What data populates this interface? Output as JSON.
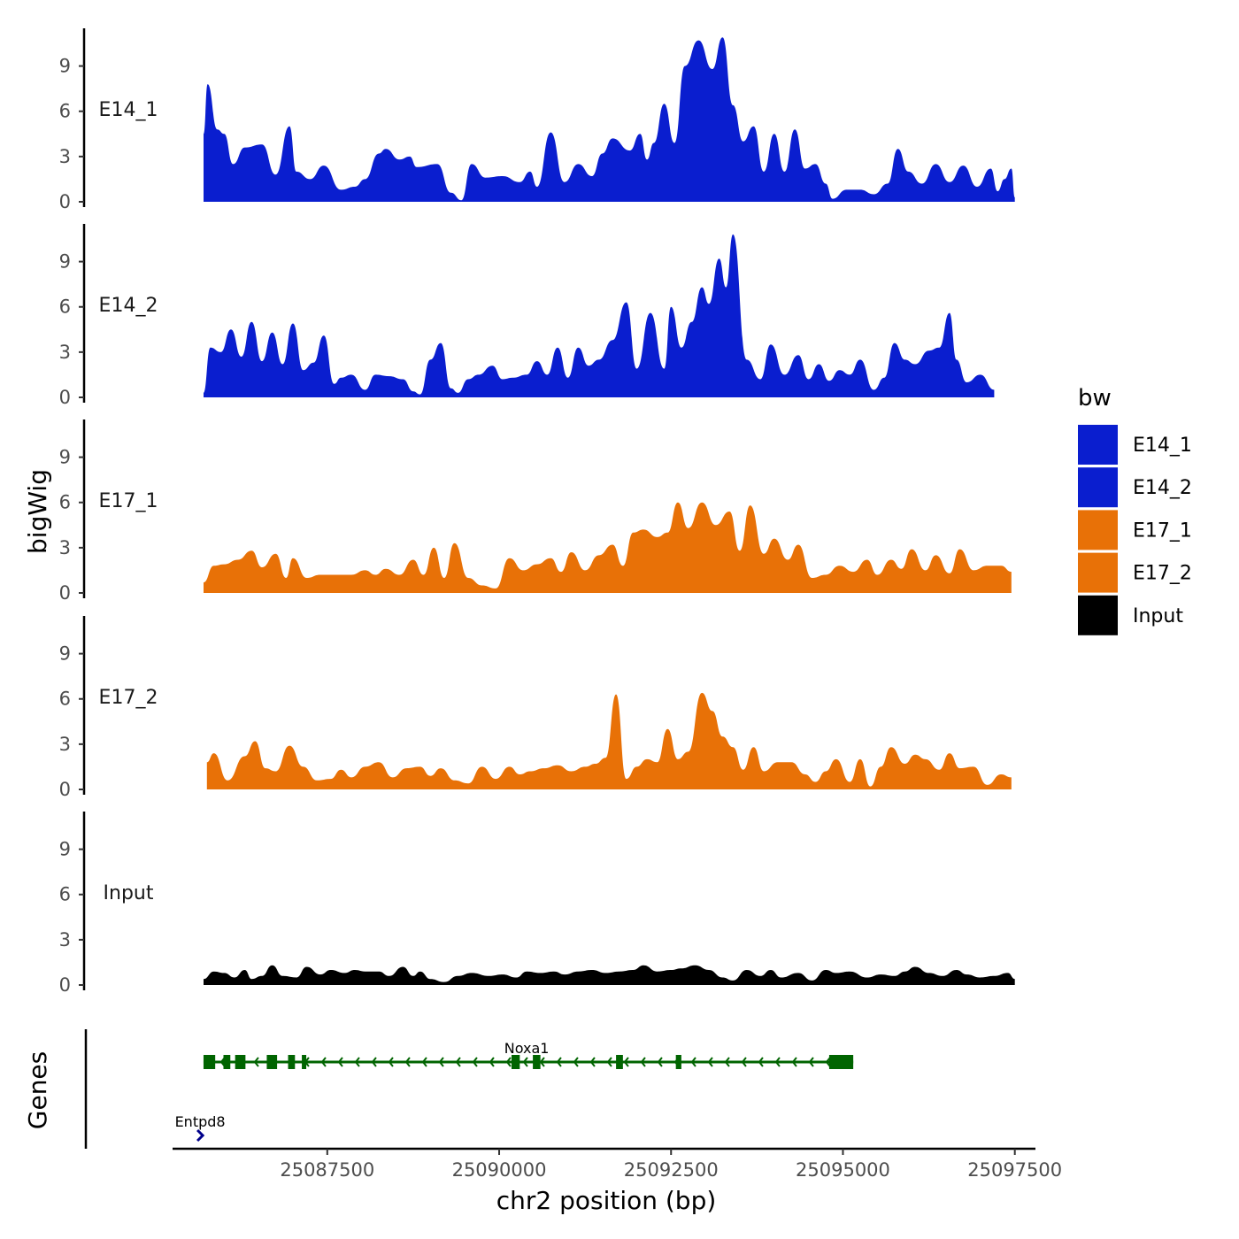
{
  "chart_data": {
    "type": "area",
    "x_label": "chr2 position (bp)",
    "y_label": "bigWig",
    "genes_panel_label": "Genes",
    "legend_title": "bw",
    "x_range": [
      25085250,
      25097800
    ],
    "x_ticks": [
      {
        "value": 25087500,
        "label": "25087500"
      },
      {
        "value": 25090000,
        "label": "25090000"
      },
      {
        "value": 25092500,
        "label": "25092500"
      },
      {
        "value": 25095000,
        "label": "25095000"
      },
      {
        "value": 25097500,
        "label": "25097500"
      }
    ],
    "y_range": [
      0,
      11.5
    ],
    "y_ticks": [
      {
        "value": 0,
        "label": "0"
      },
      {
        "value": 3,
        "label": "3"
      },
      {
        "value": 6,
        "label": "6"
      },
      {
        "value": 9,
        "label": "9"
      }
    ],
    "tracks": [
      {
        "name": "E14_1",
        "label": "E14_1",
        "color": "#0a1ecf",
        "x": [
          25085700,
          25085760,
          25085900,
          25086000,
          25086130,
          25086300,
          25086550,
          25086750,
          25086950,
          25087050,
          25087250,
          25087450,
          25087700,
          25087900,
          25088050,
          25088250,
          25088350,
          25088550,
          25088700,
          25088800,
          25089100,
          25089300,
          25089450,
          25089600,
          25089800,
          25090050,
          25090300,
          25090450,
          25090550,
          25090750,
          25090950,
          25091150,
          25091350,
          25091500,
          25091650,
          25091900,
          25092050,
          25092150,
          25092250,
          25092400,
          25092550,
          25092700,
          25092900,
          25093100,
          25093250,
          25093400,
          25093550,
          25093700,
          25093850,
          25094000,
          25094150,
          25094300,
          25094450,
          25094600,
          25094750,
          25094850,
          25095050,
          25095250,
          25095450,
          25095650,
          25095800,
          25095950,
          25096150,
          25096350,
          25096550,
          25096750,
          25096950,
          25097150,
          25097250,
          25097350,
          25097450,
          25097500
        ],
        "values": [
          4.5,
          7.8,
          4.8,
          4.5,
          2.5,
          3.6,
          3.8,
          1.8,
          5.0,
          2.0,
          1.5,
          2.4,
          0.8,
          1.0,
          1.5,
          3.2,
          3.5,
          2.8,
          3.0,
          2.3,
          2.5,
          0.6,
          0.1,
          2.5,
          1.6,
          1.7,
          1.3,
          2.0,
          1.0,
          4.6,
          1.3,
          2.5,
          1.7,
          3.2,
          4.2,
          3.4,
          4.5,
          2.8,
          3.9,
          6.5,
          3.9,
          9.0,
          10.7,
          8.8,
          10.9,
          6.4,
          4.0,
          5.0,
          2.0,
          4.5,
          2.0,
          4.8,
          2.2,
          2.5,
          1.2,
          0.2,
          0.8,
          0.8,
          0.5,
          1.2,
          3.5,
          2.0,
          1.2,
          2.5,
          1.3,
          2.4,
          1.0,
          2.2,
          0.7,
          1.5,
          2.2,
          0.3
        ]
      },
      {
        "name": "E14_2",
        "label": "E14_2",
        "color": "#0a1ecf",
        "x": [
          25085700,
          25085800,
          25085950,
          25086100,
          25086250,
          25086400,
          25086550,
          25086700,
          25086850,
          25087000,
          25087150,
          25087300,
          25087450,
          25087600,
          25087700,
          25087850,
          25088050,
          25088200,
          25088400,
          25088600,
          25088750,
          25088850,
          25089000,
          25089150,
          25089300,
          25089400,
          25089550,
          25089700,
          25089900,
          25090050,
          25090200,
          25090400,
          25090550,
          25090700,
          25090850,
          25091000,
          25091150,
          25091300,
          25091450,
          25091650,
          25091850,
          25092000,
          25092200,
          25092400,
          25092500,
          25092650,
          25092800,
          25092950,
          25093050,
          25093200,
          25093300,
          25093400,
          25093600,
          25093800,
          25093950,
          25094150,
          25094350,
          25094500,
          25094650,
          25094800,
          25094950,
          25095100,
          25095250,
          25095450,
          25095600,
          25095750,
          25095900,
          25096050,
          25096250,
          25096400,
          25096550,
          25096650,
          25096800,
          25097000,
          25097200
        ],
        "values": [
          0.3,
          3.3,
          3.0,
          4.5,
          2.7,
          5.0,
          2.4,
          4.3,
          2.2,
          4.9,
          1.8,
          2.3,
          4.1,
          0.9,
          1.3,
          1.5,
          0.5,
          1.5,
          1.4,
          1.2,
          0.4,
          0.2,
          2.5,
          3.6,
          0.6,
          0.3,
          1.2,
          1.5,
          2.1,
          1.2,
          1.3,
          1.5,
          2.4,
          1.5,
          3.3,
          1.3,
          3.3,
          2.1,
          2.5,
          3.8,
          6.3,
          1.9,
          5.6,
          1.9,
          6.0,
          3.3,
          5.0,
          7.3,
          6.2,
          9.2,
          7.3,
          10.8,
          2.5,
          1.2,
          3.5,
          1.5,
          2.8,
          1.2,
          2.2,
          1.1,
          1.8,
          1.5,
          2.5,
          0.5,
          1.3,
          3.6,
          2.5,
          2.2,
          3.1,
          3.3,
          5.6,
          2.5,
          1.0,
          1.5,
          0.5
        ]
      },
      {
        "name": "E17_1",
        "label": "E17_1",
        "color": "#e87107",
        "x": [
          25085700,
          25085850,
          25086000,
          25086200,
          25086400,
          25086550,
          25086750,
          25086900,
          25087000,
          25087200,
          25087400,
          25087650,
          25087850,
          25088050,
          25088200,
          25088350,
          25088550,
          25088750,
          25088900,
          25089050,
          25089200,
          25089350,
          25089550,
          25089750,
          25089950,
          25090150,
          25090350,
          25090550,
          25090750,
          25090900,
          25091050,
          25091250,
          25091450,
          25091650,
          25091800,
          25091950,
          25092100,
          25092300,
          25092450,
          25092600,
          25092750,
          25092950,
          25093150,
          25093350,
          25093500,
          25093650,
          25093850,
          25094000,
          25094200,
          25094350,
          25094550,
          25094750,
          25094950,
          25095150,
          25095350,
          25095500,
          25095700,
          25095850,
          25096000,
          25096200,
          25096350,
          25096550,
          25096700,
          25096900,
          25097100,
          25097300,
          25097450
        ],
        "values": [
          0.7,
          1.8,
          1.9,
          2.2,
          2.8,
          1.7,
          2.6,
          1.0,
          2.3,
          1.0,
          1.2,
          1.2,
          1.2,
          1.5,
          1.2,
          1.6,
          1.2,
          2.2,
          1.2,
          3.0,
          1.0,
          3.3,
          1.0,
          0.5,
          0.3,
          2.3,
          1.5,
          1.9,
          2.3,
          1.4,
          2.7,
          1.5,
          2.5,
          3.2,
          1.8,
          4.0,
          4.2,
          3.7,
          4.0,
          6.0,
          4.3,
          6.0,
          4.5,
          5.4,
          2.8,
          5.8,
          2.6,
          3.6,
          2.2,
          3.2,
          1.0,
          1.2,
          1.8,
          1.4,
          2.2,
          1.2,
          2.2,
          1.6,
          2.9,
          1.5,
          2.5,
          1.3,
          2.9,
          1.5,
          1.8,
          1.8,
          1.4
        ]
      },
      {
        "name": "E17_2",
        "label": "E17_2",
        "color": "#e87107",
        "x": [
          25085750,
          25085850,
          25086050,
          25086300,
          25086450,
          25086600,
          25086750,
          25086950,
          25087150,
          25087350,
          25087550,
          25087700,
          25087850,
          25088050,
          25088250,
          25088450,
          25088650,
          25088850,
          25089000,
          25089150,
          25089350,
          25089550,
          25089750,
          25089950,
          25090150,
          25090300,
          25090450,
          25090650,
          25090850,
          25091050,
          25091250,
          25091400,
          25091550,
          25091700,
          25091850,
          25092000,
          25092150,
          25092300,
          25092450,
          25092600,
          25092750,
          25092950,
          25093100,
          25093250,
          25093400,
          25093550,
          25093700,
          25093850,
          25094050,
          25094250,
          25094450,
          25094600,
          25094750,
          25094900,
          25095100,
          25095250,
          25095400,
          25095550,
          25095700,
          25095900,
          25096050,
          25096200,
          25096400,
          25096550,
          25096700,
          25096900,
          25097100,
          25097300,
          25097450
        ],
        "values": [
          1.8,
          2.4,
          0.6,
          2.2,
          3.2,
          1.4,
          1.2,
          2.9,
          1.5,
          0.6,
          0.7,
          1.3,
          0.8,
          1.5,
          1.8,
          0.8,
          1.4,
          1.5,
          0.9,
          1.4,
          0.6,
          0.4,
          1.5,
          0.7,
          1.5,
          1.0,
          1.2,
          1.4,
          1.6,
          1.2,
          1.5,
          1.7,
          2.1,
          6.3,
          0.7,
          1.5,
          2.0,
          1.8,
          4.0,
          2.0,
          2.5,
          6.4,
          5.2,
          3.5,
          2.8,
          1.3,
          2.8,
          1.2,
          1.8,
          1.8,
          1.0,
          0.5,
          1.2,
          2.0,
          0.5,
          2.0,
          0.2,
          1.5,
          2.8,
          1.7,
          2.3,
          2.0,
          1.3,
          2.4,
          1.4,
          1.5,
          0.3,
          1.0,
          0.8
        ]
      },
      {
        "name": "Input",
        "label": "Input",
        "color": "#000000",
        "x": [
          25085700,
          25085850,
          25086000,
          25086150,
          25086300,
          25086400,
          25086550,
          25086700,
          25086850,
          25087050,
          25087200,
          25087400,
          25087550,
          25087750,
          25087900,
          25088050,
          25088250,
          25088400,
          25088600,
          25088750,
          25088850,
          25089000,
          25089200,
          25089400,
          25089600,
          25089850,
          25090050,
          25090250,
          25090400,
          25090600,
          25090800,
          25090950,
          25091150,
          25091350,
          25091550,
          25091750,
          25091950,
          25092100,
          25092300,
          25092500,
          25092650,
          25092850,
          25093050,
          25093250,
          25093400,
          25093600,
          25093800,
          25093950,
          25094100,
          25094350,
          25094550,
          25094750,
          25094900,
          25095100,
          25095350,
          25095550,
          25095750,
          25095900,
          25096050,
          25096250,
          25096450,
          25096650,
          25096800,
          25097000,
          25097200,
          25097400,
          25097500
        ],
        "values": [
          0.4,
          0.9,
          0.8,
          0.5,
          1.0,
          0.4,
          0.6,
          1.3,
          0.6,
          0.5,
          1.2,
          0.7,
          1.0,
          0.8,
          1.0,
          0.9,
          0.9,
          0.6,
          1.2,
          0.6,
          0.9,
          0.4,
          0.2,
          0.6,
          0.8,
          0.6,
          0.7,
          0.5,
          0.9,
          0.8,
          0.9,
          0.7,
          0.9,
          1.0,
          0.8,
          0.9,
          1.0,
          1.3,
          0.9,
          1.0,
          1.1,
          1.3,
          1.0,
          0.5,
          0.3,
          1.0,
          0.6,
          1.0,
          0.5,
          0.8,
          0.3,
          1.0,
          0.8,
          0.9,
          0.5,
          0.7,
          0.6,
          0.9,
          1.2,
          0.8,
          0.6,
          1.0,
          0.7,
          0.5,
          0.6,
          0.8,
          0.4
        ]
      }
    ],
    "legend": [
      {
        "label": "E14_1",
        "color": "#0a1ecf"
      },
      {
        "label": "E14_2",
        "color": "#0a1ecf"
      },
      {
        "label": "E17_1",
        "color": "#e87107"
      },
      {
        "label": "E17_2",
        "color": "#e87107"
      },
      {
        "label": "Input",
        "color": "#000000"
      }
    ],
    "genes": [
      {
        "name": "Noxa1",
        "strand": "-",
        "color": "#006400",
        "start": 25085700,
        "end": 25095150,
        "exons": [
          [
            25085700,
            25085870
          ],
          [
            25085990,
            25086090
          ],
          [
            25086160,
            25086310
          ],
          [
            25086620,
            25086770
          ],
          [
            25086930,
            25087030
          ],
          [
            25087130,
            25087180
          ],
          [
            25090180,
            25090300
          ],
          [
            25090490,
            25090600
          ],
          [
            25091700,
            25091800
          ],
          [
            25092570,
            25092650
          ],
          [
            25094800,
            25095150
          ]
        ]
      },
      {
        "name": "Entpd8",
        "strand": "+",
        "color": "#00008b",
        "start": 25085600,
        "end": 25085700,
        "exons": []
      }
    ]
  }
}
